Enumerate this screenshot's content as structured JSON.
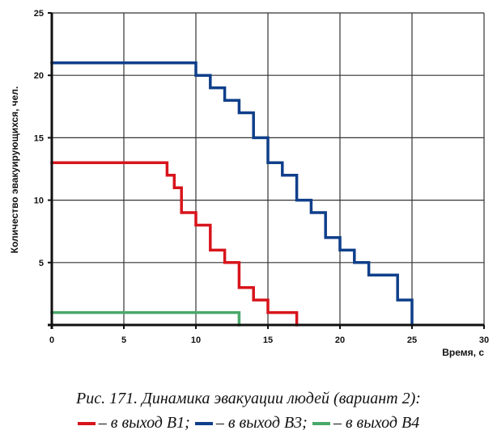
{
  "chart_data": {
    "type": "line",
    "step": true,
    "xlabel": "Время, с",
    "ylabel": "Количество эвакуирующихся, чел.",
    "xlim": [
      0,
      30
    ],
    "ylim": [
      0,
      25
    ],
    "xticks": [
      0,
      5,
      10,
      15,
      20,
      25,
      30
    ],
    "yticks": [
      5,
      10,
      15,
      20,
      25
    ],
    "grid": true,
    "series": [
      {
        "name": "– в выход В1;",
        "color": "#d8141c",
        "x": [
          0,
          8,
          8,
          8.5,
          8.5,
          9,
          9,
          10,
          10,
          11,
          11,
          12,
          12,
          13,
          13,
          14,
          14,
          15,
          15,
          17,
          17
        ],
        "y": [
          13,
          13,
          12,
          12,
          11,
          11,
          9,
          9,
          8,
          8,
          6,
          6,
          5,
          5,
          3,
          3,
          2,
          2,
          1,
          1,
          0
        ]
      },
      {
        "name": "– в выход В3;",
        "color": "#0f3f8a",
        "x": [
          0,
          10,
          10,
          11,
          11,
          12,
          12,
          13,
          13,
          14,
          14,
          15,
          15,
          16,
          16,
          17,
          17,
          18,
          18,
          19,
          19,
          20,
          20,
          21,
          21,
          22,
          22,
          24,
          24,
          25,
          25
        ],
        "y": [
          21,
          21,
          20,
          20,
          19,
          19,
          18,
          18,
          17,
          17,
          15,
          15,
          13,
          13,
          12,
          12,
          10,
          10,
          9,
          9,
          7,
          7,
          6,
          6,
          5,
          5,
          4,
          4,
          2,
          2,
          0
        ]
      },
      {
        "name": "– в выход В4",
        "color": "#4aa86a",
        "x": [
          0,
          13,
          13
        ],
        "y": [
          1,
          1,
          0
        ]
      }
    ]
  },
  "caption": {
    "title": "Рис. 171. Динамика эвакуации людей (вариант 2):"
  }
}
